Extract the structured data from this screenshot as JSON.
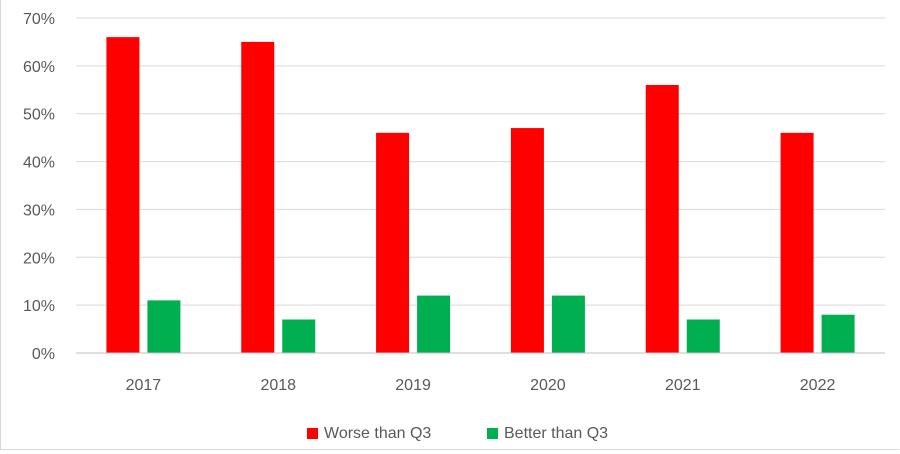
{
  "chart_data": {
    "type": "bar",
    "categories": [
      "2017",
      "2018",
      "2019",
      "2020",
      "2021",
      "2022"
    ],
    "series": [
      {
        "name": "Worse than Q3",
        "color": "#ff0000",
        "values": [
          66,
          65,
          46,
          47,
          56,
          46
        ]
      },
      {
        "name": "Better than Q3",
        "color": "#00b050",
        "values": [
          11,
          7,
          12,
          12,
          7,
          8
        ]
      }
    ],
    "ylim": [
      0,
      70
    ],
    "yticks": [
      0,
      10,
      20,
      30,
      40,
      50,
      60,
      70
    ],
    "ytick_labels": [
      "0%",
      "10%",
      "20%",
      "30%",
      "40%",
      "50%",
      "60%",
      "70%"
    ],
    "grid": true,
    "legend_position": "bottom",
    "title": "",
    "xlabel": "",
    "ylabel": ""
  }
}
